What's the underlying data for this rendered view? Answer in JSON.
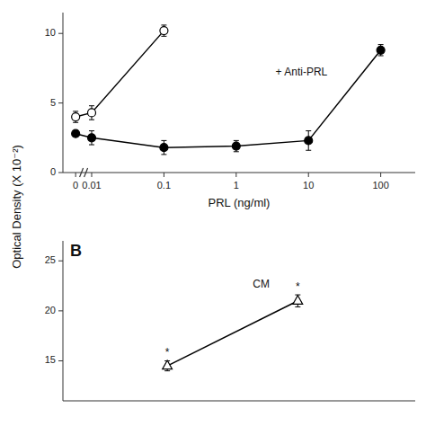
{
  "chart_data": [
    {
      "type": "line",
      "xlabel": "PRL (ng/ml)",
      "ylabel": "Optical Density (X 10⁻²)",
      "log": "x",
      "xlim": [
        0.004,
        300
      ],
      "ylim": [
        0,
        11.5
      ],
      "xticks": [
        {
          "value": 0.006,
          "label": "0"
        },
        0.01,
        0.1,
        1,
        10,
        100
      ],
      "yticks": [
        0,
        5,
        10
      ],
      "grid": false,
      "series": [
        {
          "color": "black",
          "marker": "circle",
          "x": [
            0.006,
            0.01,
            0.1,
            1,
            10,
            100
          ],
          "values": [
            2.8,
            2.5,
            1.8,
            1.9,
            2.3,
            8.8
          ],
          "errors": [
            0.2,
            0.5,
            0.5,
            0.4,
            0.7,
            0.4
          ]
        },
        {
          "color": "black",
          "marker": "open-circle",
          "x": [
            0.006,
            0.01,
            0.1
          ],
          "values": [
            4.0,
            4.3,
            10.2
          ],
          "errors": [
            0.4,
            0.5,
            0.4
          ]
        }
      ],
      "annotations": [
        {
          "text": "+ Anti-PRL",
          "x": 8,
          "y": 7.0
        }
      ]
    },
    {
      "type": "line",
      "title": "B",
      "xlim": [
        1.2,
        3.9
      ],
      "ylim": [
        11,
        27
      ],
      "yticks": [
        15,
        20,
        25
      ],
      "tick_labels": "y",
      "grid": false,
      "series": [
        {
          "color": "black",
          "marker": "open-triangle",
          "x": [
            2,
            3
          ],
          "values": [
            14.5,
            21.0
          ],
          "errors": [
            0.5,
            0.6
          ]
        }
      ],
      "annotations": [
        {
          "text": "*",
          "x": 2,
          "y": 15.5
        },
        {
          "text": "*",
          "x": 3,
          "y": 22.1
        },
        {
          "text": "CM",
          "x": 2.72,
          "y": 22.3
        }
      ]
    }
  ]
}
